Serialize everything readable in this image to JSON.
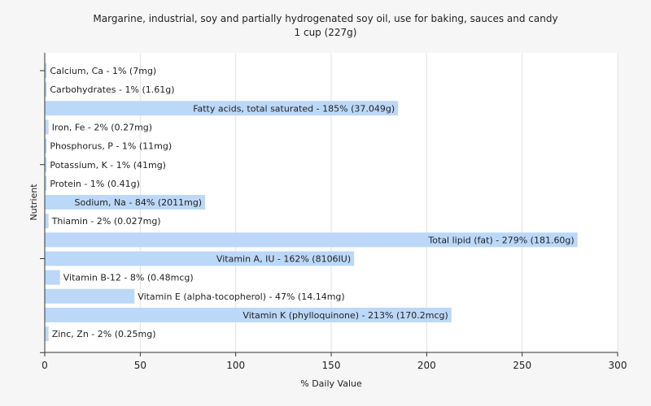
{
  "chart_data": {
    "type": "bar",
    "orientation": "horizontal",
    "title": "Margarine, industrial, soy and partially hydrogenated soy oil, use for baking, sauces and candy",
    "subtitle": "1 cup (227g)",
    "xlabel": "% Daily Value",
    "ylabel": "Nutrient",
    "xlim": [
      0,
      300
    ],
    "xticks": [
      0,
      50,
      100,
      150,
      200,
      250,
      300
    ],
    "grid": true,
    "bar_color": "#bcd8f8",
    "categories": [
      "Calcium, Ca",
      "Carbohydrates",
      "Fatty acids, total saturated",
      "Iron, Fe",
      "Phosphorus, P",
      "Potassium, K",
      "Protein",
      "Sodium, Na",
      "Thiamin",
      "Total lipid (fat)",
      "Vitamin A, IU",
      "Vitamin B-12",
      "Vitamin E (alpha-tocopherol)",
      "Vitamin K (phylloquinone)",
      "Zinc, Zn"
    ],
    "values": [
      1,
      1,
      185,
      2,
      1,
      1,
      1,
      84,
      2,
      279,
      162,
      8,
      47,
      213,
      2
    ],
    "labels": [
      "Calcium, Ca - 1% (7mg)",
      "Carbohydrates - 1% (1.61g)",
      "Fatty acids, total saturated - 185% (37.049g)",
      "Iron, Fe - 2% (0.27mg)",
      "Phosphorus, P - 1% (11mg)",
      "Potassium, K - 1% (41mg)",
      "Protein - 1% (0.41g)",
      "Sodium, Na - 84% (2011mg)",
      "Thiamin - 2% (0.027mg)",
      "Total lipid (fat) - 279% (181.60g)",
      "Vitamin A, IU - 162% (8106IU)",
      "Vitamin B-12 - 8% (0.48mcg)",
      "Vitamin E (alpha-tocopherol) - 47% (14.14mg)",
      "Vitamin K (phylloquinone) - 213% (170.2mcg)",
      "Zinc, Zn - 2% (0.25mg)"
    ]
  }
}
